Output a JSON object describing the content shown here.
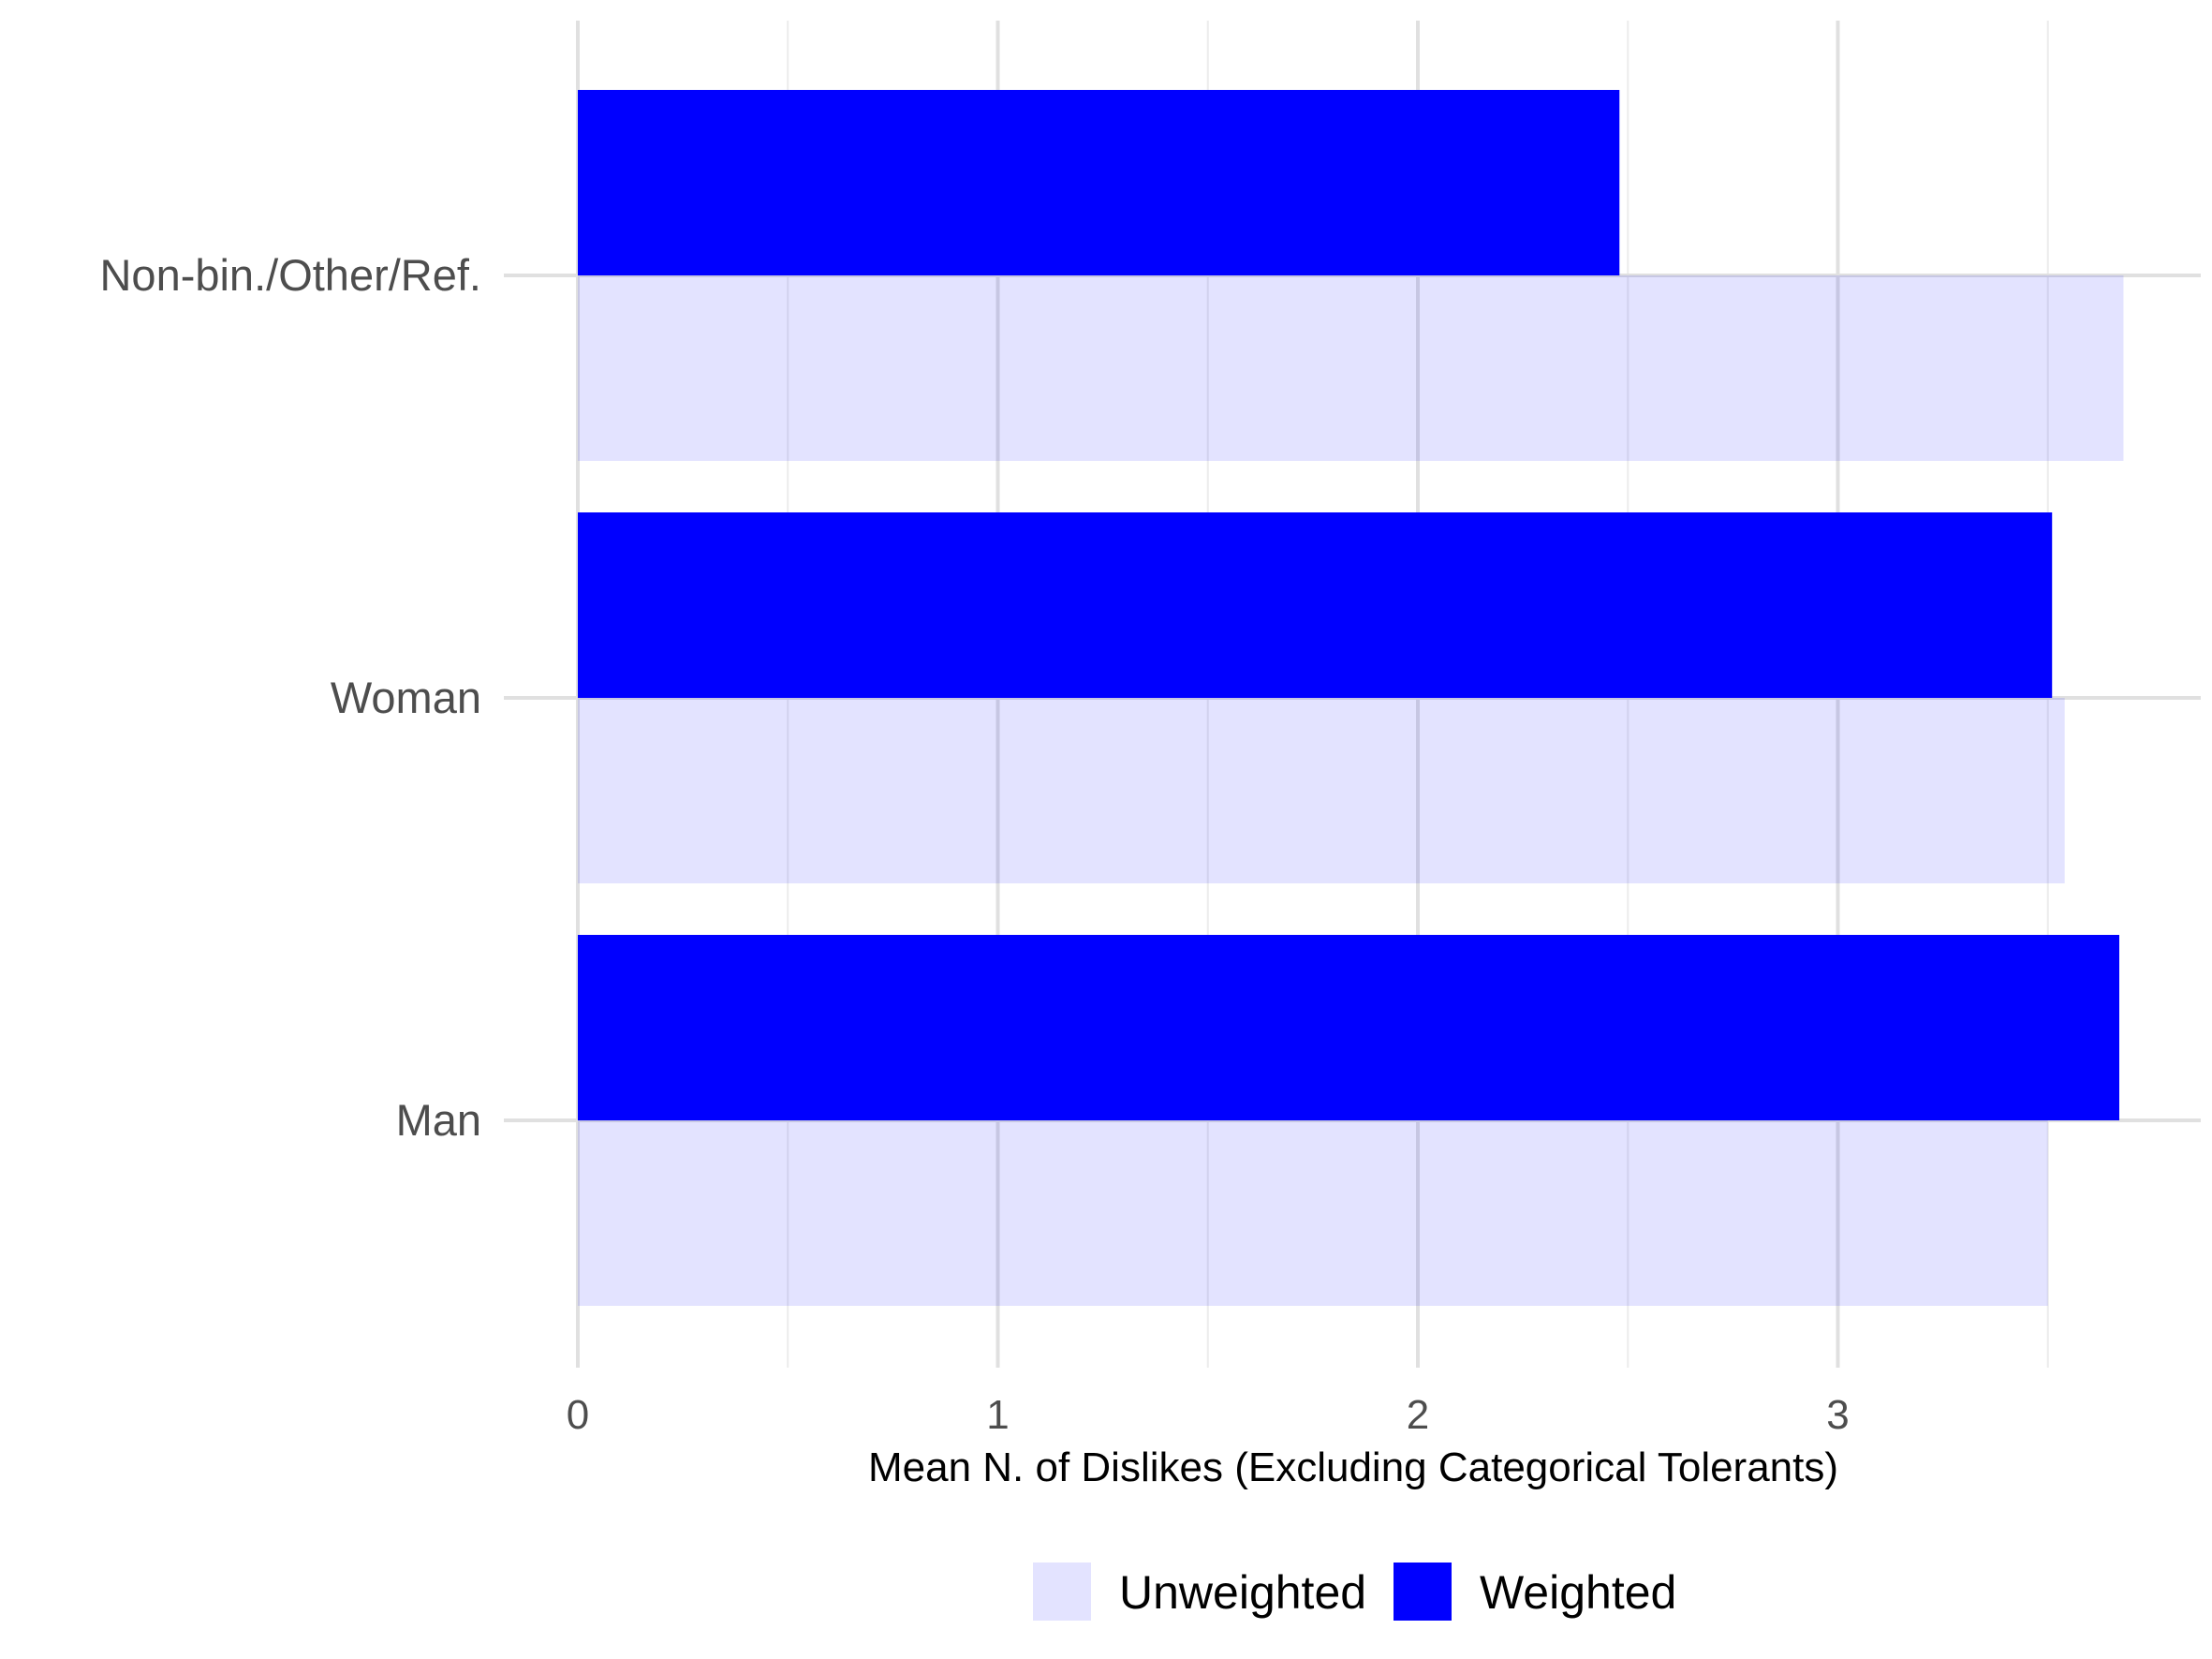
{
  "chart_data": {
    "type": "bar",
    "orientation": "horizontal",
    "categories": [
      "Non-bin./Other/Ref.",
      "Woman",
      "Man"
    ],
    "series": [
      {
        "name": "Weighted",
        "values": [
          2.48,
          3.51,
          3.67
        ],
        "color": "#0000ff"
      },
      {
        "name": "Unweighted",
        "values": [
          3.68,
          3.54,
          3.5
        ],
        "color": "#e3e3fd"
      }
    ],
    "xlabel": "Mean N. of Dislikes (Excluding Categorical Tolerants)",
    "ylabel": "",
    "xlim": [
      0,
      3.85
    ],
    "xticks": [
      "0",
      "1",
      "2",
      "3"
    ],
    "grid": true,
    "legend": {
      "position": "bottom",
      "entries": [
        {
          "label": "Unweighted",
          "color": "#e3e3fd"
        },
        {
          "label": "Weighted",
          "color": "#0000ff"
        }
      ]
    }
  }
}
